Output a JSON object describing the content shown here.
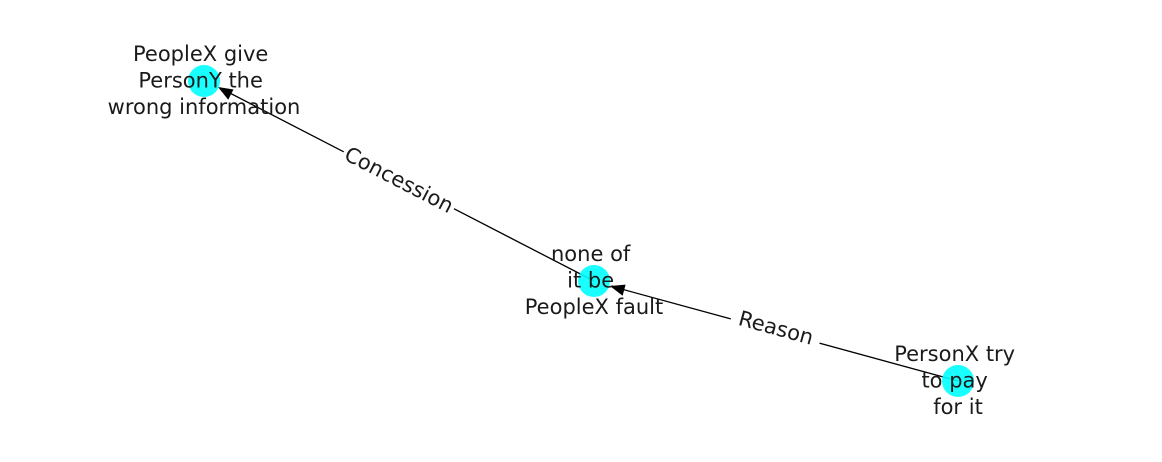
{
  "nodes": [
    {
      "id": "n1",
      "lines": [
        "PeopleX give",
        "PersonY the",
        "wrong information"
      ]
    },
    {
      "id": "n2",
      "lines": [
        "none of",
        "it be",
        "PeopleX fault"
      ]
    },
    {
      "id": "n3",
      "lines": [
        "PersonX try",
        "to pay",
        "for it"
      ]
    }
  ],
  "edges": [
    {
      "id": "e1",
      "from": "n2",
      "to": "n1",
      "label": "Concession"
    },
    {
      "id": "e2",
      "from": "n3",
      "to": "n2",
      "label": "Reason"
    }
  ],
  "colors": {
    "node_fill": "#00ffff",
    "edge": "#000000",
    "text": "#1a1a1a"
  }
}
